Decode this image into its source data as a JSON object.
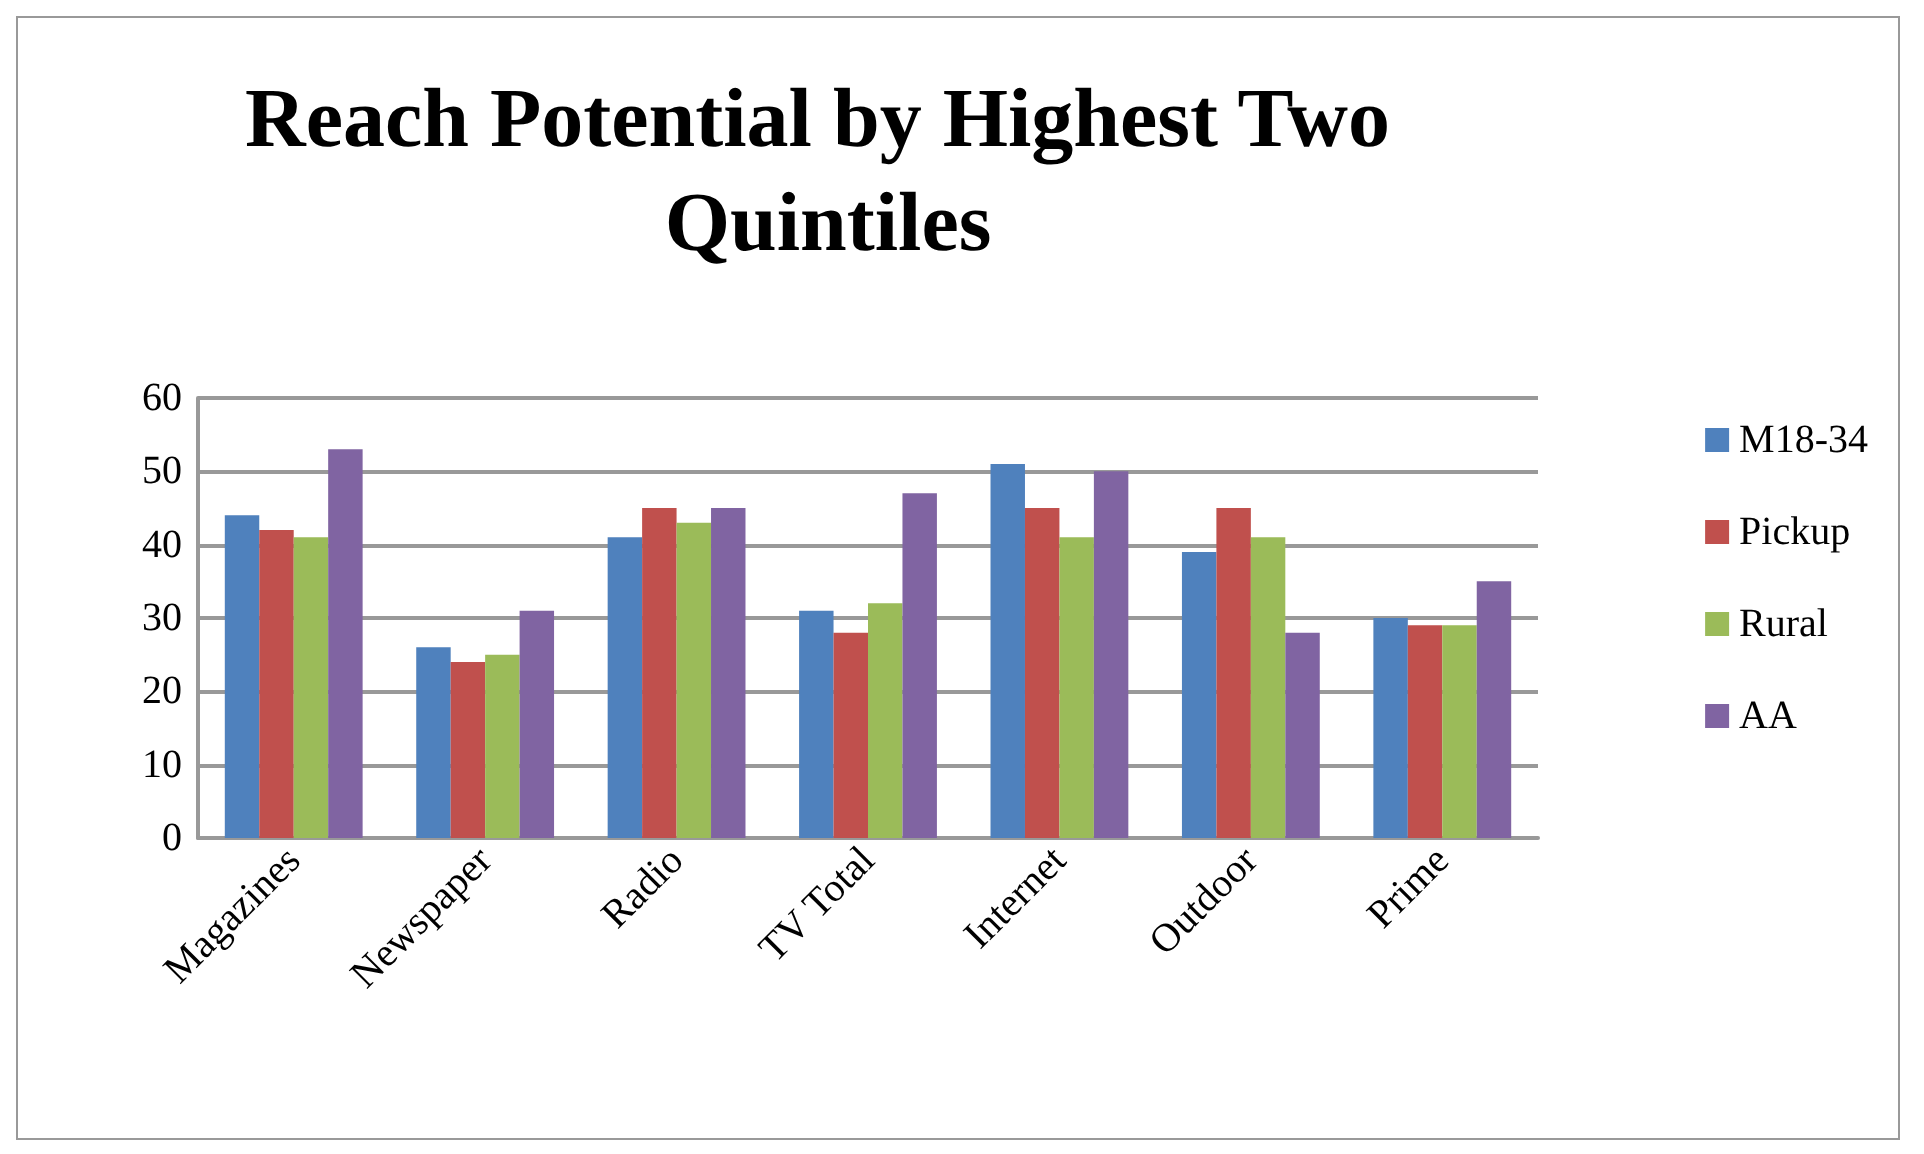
{
  "chart_data": {
    "type": "bar",
    "title": "Reach Potential by Highest Two Quintiles",
    "categories": [
      "Magazines",
      "Newspaper",
      "Radio",
      "TV Total",
      "Internet",
      "Outdoor",
      "Prime"
    ],
    "series": [
      {
        "name": "M18-34",
        "color": "#4f81bd",
        "values": [
          44,
          26,
          41,
          31,
          51,
          39,
          30
        ]
      },
      {
        "name": "Pickup",
        "color": "#c0504d",
        "values": [
          42,
          24,
          45,
          28,
          45,
          45,
          29
        ]
      },
      {
        "name": "Rural",
        "color": "#9bbb59",
        "values": [
          41,
          25,
          43,
          32,
          41,
          41,
          29
        ]
      },
      {
        "name": "AA",
        "color": "#8064a2",
        "values": [
          53,
          31,
          45,
          47,
          50,
          28,
          35
        ]
      }
    ],
    "ylim": [
      0,
      60
    ],
    "yticks": [
      0,
      10,
      20,
      30,
      40,
      50,
      60
    ],
    "grid": "y",
    "legend": "right"
  }
}
